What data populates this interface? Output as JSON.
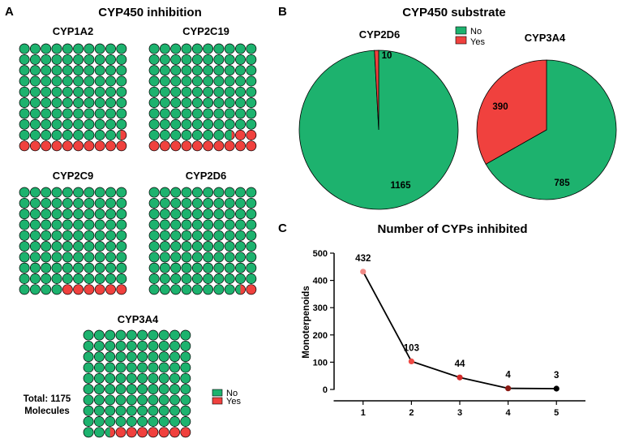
{
  "colors": {
    "no": "#1db26e",
    "yes": "#f0413e",
    "line": "#000000"
  },
  "chart_data": [
    {
      "type": "waffle",
      "panel": "A",
      "title": "CYP450 inhibition",
      "footnote": [
        "Total: 1175",
        "Molecules"
      ],
      "legend": [
        "No",
        "Yes"
      ],
      "legend_position": "bottom-right",
      "charts": [
        {
          "name": "CYP1A2",
          "yes_cells": 10.6
        },
        {
          "name": "CYP2C19",
          "yes_cells": 12.3
        },
        {
          "name": "CYP2C9",
          "yes_cells": 6
        },
        {
          "name": "CYP2D6",
          "yes_cells": 1.5
        },
        {
          "name": "CYP3A4",
          "yes_cells": 7.5
        }
      ]
    },
    {
      "type": "pie",
      "panel": "B",
      "title": "CYP450 substrate",
      "legend": [
        "No",
        "Yes"
      ],
      "legend_position": "top-center",
      "pies": [
        {
          "name": "CYP2D6",
          "no": 1165,
          "yes": 10
        },
        {
          "name": "CYP3A4",
          "no": 785,
          "yes": 390
        }
      ]
    },
    {
      "type": "line",
      "panel": "C",
      "title": "Number of CYPs inhibited",
      "xlabel": "",
      "ylabel": "Monoterpenoids",
      "x": [
        1,
        2,
        3,
        4,
        5
      ],
      "y": [
        432,
        103,
        44,
        4,
        3
      ],
      "point_colors": [
        "#f08a86",
        "#ee4a45",
        "#d42b2a",
        "#8b1a14",
        "#000000"
      ],
      "xlim": [
        0.4,
        5.6
      ],
      "ylim": [
        0,
        500
      ],
      "yticks": [
        0,
        100,
        200,
        300,
        400,
        500
      ],
      "grid": false
    }
  ]
}
